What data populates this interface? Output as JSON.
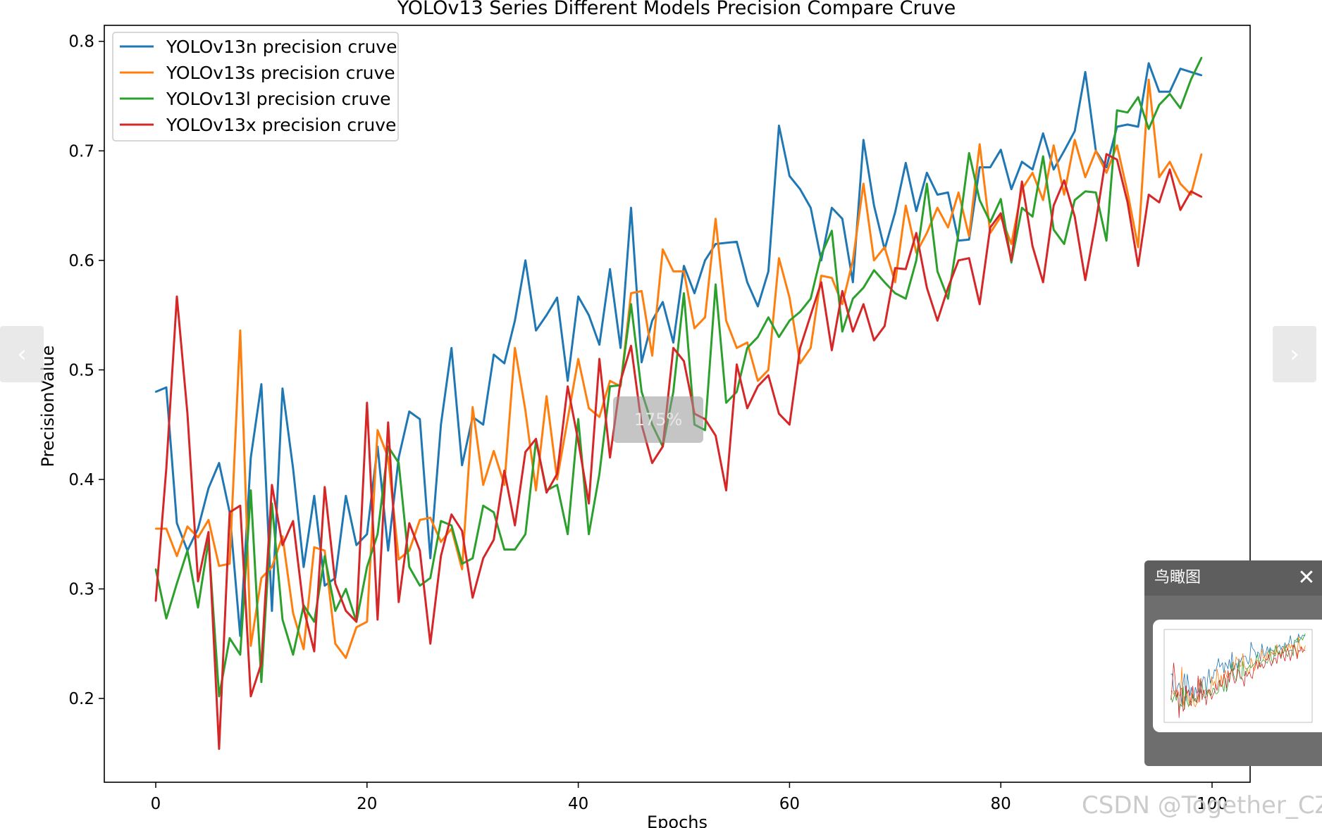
{
  "viewer": {
    "zoom_label": "175%",
    "prev_icon": "‹",
    "next_icon": "›",
    "birdseye_title": "鸟瞰图",
    "close_icon": "✕",
    "watermark": "CSDN @Together_CZ"
  },
  "colors": {
    "YOLOv13n": "#1f77b4",
    "YOLOv13s": "#ff7f0e",
    "YOLOv13l": "#2ca02c",
    "YOLOv13x": "#d62728"
  },
  "chart_data": {
    "type": "line",
    "title": "YOLOv13 Series Different Models Precision Compare Cruve",
    "xlabel": "Epochs",
    "ylabel": "PrecisionValue",
    "xlim": [
      -5,
      104
    ],
    "ylim": [
      0.12,
      0.817
    ],
    "xticks": [
      0,
      20,
      40,
      60,
      80,
      100
    ],
    "yticks": [
      0.2,
      0.3,
      0.4,
      0.5,
      0.6,
      0.7,
      0.8
    ],
    "grid": false,
    "legend": "upper left",
    "x_start": 0,
    "series": [
      {
        "name": "YOLOv13n precision cruve",
        "values": [
          0.48,
          0.484,
          0.36,
          0.335,
          0.355,
          0.392,
          0.415,
          0.37,
          0.257,
          0.42,
          0.487,
          0.28,
          0.483,
          0.41,
          0.32,
          0.385,
          0.303,
          0.31,
          0.385,
          0.34,
          0.35,
          0.43,
          0.335,
          0.42,
          0.462,
          0.455,
          0.328,
          0.45,
          0.52,
          0.413,
          0.457,
          0.45,
          0.514,
          0.506,
          0.545,
          0.6,
          0.536,
          0.55,
          0.566,
          0.49,
          0.567,
          0.55,
          0.523,
          0.592,
          0.52,
          0.648,
          0.507,
          0.545,
          0.562,
          0.525,
          0.595,
          0.57,
          0.6,
          0.615,
          0.616,
          0.617,
          0.58,
          0.558,
          0.59,
          0.723,
          0.677,
          0.665,
          0.648,
          0.6,
          0.648,
          0.638,
          0.58,
          0.71,
          0.65,
          0.61,
          0.644,
          0.689,
          0.645,
          0.68,
          0.66,
          0.662,
          0.618,
          0.619,
          0.685,
          0.685,
          0.701,
          0.665,
          0.69,
          0.683,
          0.716,
          0.683,
          0.7,
          0.718,
          0.772,
          0.7,
          0.685,
          0.722,
          0.724,
          0.722,
          0.78,
          0.754,
          0.754,
          0.775,
          0.772,
          0.769
        ]
      },
      {
        "name": "YOLOv13s precision cruve",
        "values": [
          0.355,
          0.355,
          0.33,
          0.357,
          0.347,
          0.363,
          0.321,
          0.323,
          0.536,
          0.248,
          0.31,
          0.32,
          0.348,
          0.278,
          0.245,
          0.338,
          0.335,
          0.25,
          0.237,
          0.265,
          0.27,
          0.445,
          0.42,
          0.327,
          0.335,
          0.363,
          0.365,
          0.343,
          0.355,
          0.318,
          0.466,
          0.395,
          0.426,
          0.395,
          0.52,
          0.463,
          0.39,
          0.476,
          0.4,
          0.455,
          0.51,
          0.465,
          0.457,
          0.49,
          0.485,
          0.57,
          0.572,
          0.513,
          0.61,
          0.59,
          0.59,
          0.538,
          0.548,
          0.638,
          0.545,
          0.52,
          0.525,
          0.49,
          0.5,
          0.602,
          0.566,
          0.506,
          0.52,
          0.586,
          0.584,
          0.56,
          0.6,
          0.67,
          0.6,
          0.612,
          0.58,
          0.65,
          0.607,
          0.625,
          0.648,
          0.63,
          0.662,
          0.622,
          0.706,
          0.625,
          0.64,
          0.615,
          0.665,
          0.68,
          0.655,
          0.705,
          0.66,
          0.71,
          0.676,
          0.7,
          0.68,
          0.705,
          0.662,
          0.612,
          0.765,
          0.676,
          0.69,
          0.67,
          0.66,
          0.697
        ]
      },
      {
        "name": "YOLOv13l precision cruve",
        "values": [
          0.318,
          0.273,
          0.305,
          0.335,
          0.283,
          0.344,
          0.202,
          0.255,
          0.24,
          0.39,
          0.215,
          0.378,
          0.272,
          0.24,
          0.285,
          0.27,
          0.33,
          0.28,
          0.3,
          0.27,
          0.32,
          0.35,
          0.43,
          0.415,
          0.32,
          0.303,
          0.31,
          0.362,
          0.358,
          0.323,
          0.328,
          0.376,
          0.37,
          0.336,
          0.336,
          0.35,
          0.435,
          0.39,
          0.395,
          0.35,
          0.455,
          0.35,
          0.405,
          0.485,
          0.486,
          0.56,
          0.48,
          0.45,
          0.43,
          0.48,
          0.57,
          0.45,
          0.445,
          0.578,
          0.47,
          0.48,
          0.52,
          0.53,
          0.548,
          0.53,
          0.545,
          0.553,
          0.565,
          0.605,
          0.627,
          0.535,
          0.565,
          0.575,
          0.591,
          0.58,
          0.57,
          0.565,
          0.6,
          0.67,
          0.59,
          0.565,
          0.625,
          0.698,
          0.655,
          0.635,
          0.656,
          0.598,
          0.648,
          0.64,
          0.695,
          0.628,
          0.615,
          0.655,
          0.663,
          0.662,
          0.618,
          0.737,
          0.735,
          0.749,
          0.72,
          0.742,
          0.752,
          0.739,
          0.765,
          0.785
        ]
      },
      {
        "name": "YOLOv13x precision cruve",
        "values": [
          0.289,
          0.41,
          0.567,
          0.46,
          0.307,
          0.352,
          0.154,
          0.37,
          0.376,
          0.202,
          0.232,
          0.395,
          0.34,
          0.362,
          0.282,
          0.243,
          0.393,
          0.305,
          0.28,
          0.27,
          0.47,
          0.272,
          0.452,
          0.288,
          0.36,
          0.335,
          0.25,
          0.33,
          0.368,
          0.353,
          0.292,
          0.328,
          0.345,
          0.408,
          0.358,
          0.425,
          0.437,
          0.388,
          0.405,
          0.485,
          0.435,
          0.378,
          0.51,
          0.42,
          0.49,
          0.522,
          0.45,
          0.415,
          0.43,
          0.52,
          0.508,
          0.46,
          0.455,
          0.44,
          0.39,
          0.505,
          0.465,
          0.485,
          0.495,
          0.46,
          0.45,
          0.52,
          0.55,
          0.58,
          0.518,
          0.572,
          0.535,
          0.56,
          0.527,
          0.54,
          0.593,
          0.592,
          0.625,
          0.575,
          0.545,
          0.575,
          0.6,
          0.602,
          0.56,
          0.63,
          0.643,
          0.6,
          0.672,
          0.613,
          0.58,
          0.65,
          0.673,
          0.64,
          0.582,
          0.635,
          0.697,
          0.692,
          0.653,
          0.595,
          0.66,
          0.653,
          0.683,
          0.646,
          0.663,
          0.658
        ]
      }
    ]
  }
}
